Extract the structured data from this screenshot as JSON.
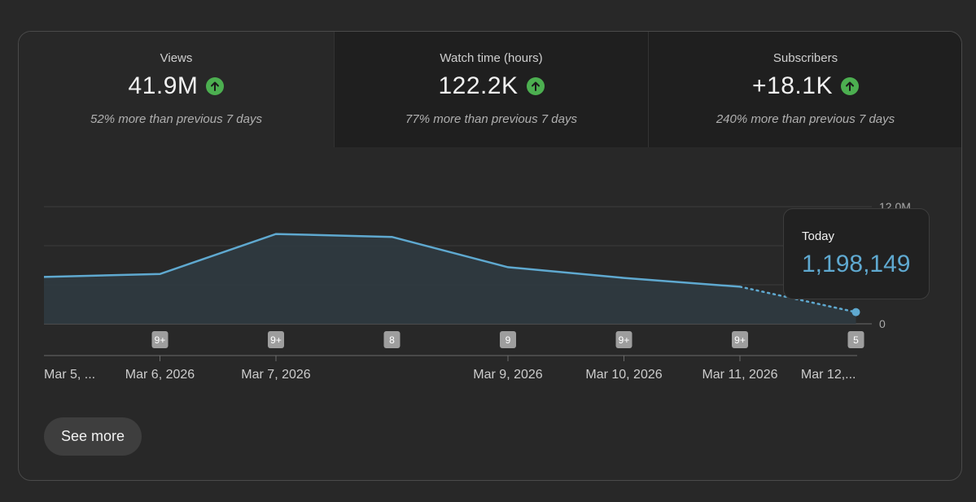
{
  "tabs": [
    {
      "label": "Views",
      "value": "41.9M",
      "change": "52% more than previous 7 days"
    },
    {
      "label": "Watch time (hours)",
      "value": "122.2K",
      "change": "77% more than previous 7 days"
    },
    {
      "label": "Subscribers",
      "value": "+18.1K",
      "change": "240% more than previous 7 days"
    }
  ],
  "colors": {
    "accent": "#5fa9d0",
    "up": "#4caf50",
    "fill": "#2f3a40"
  },
  "chart_data": {
    "type": "area",
    "title": "Views",
    "ylim": [
      0,
      12000000
    ],
    "y_tick_labels": [
      "12.0M",
      "0"
    ],
    "points": [
      {
        "x": 0,
        "y": 4800000
      },
      {
        "x": 1,
        "y": 5100000
      },
      {
        "x": 2,
        "y": 9200000
      },
      {
        "x": 3,
        "y": 8900000
      },
      {
        "x": 4,
        "y": 5800000
      },
      {
        "x": 5,
        "y": 4700000
      },
      {
        "x": 6,
        "y": 3800000
      },
      {
        "x": 7,
        "y": 1198149
      }
    ],
    "partial_from_index": 6,
    "x_labels": [
      {
        "x": 0,
        "label": "Mar 5, ..."
      },
      {
        "x": 1,
        "label": "Mar 6, 2026"
      },
      {
        "x": 2,
        "label": "Mar 7, 2026"
      },
      {
        "x": 4,
        "label": "Mar 9, 2026"
      },
      {
        "x": 5,
        "label": "Mar 10, 2026"
      },
      {
        "x": 6,
        "label": "Mar 11, 2026"
      },
      {
        "x": 7,
        "label": "Mar 12,..."
      }
    ],
    "upload_markers": [
      {
        "x": 1,
        "label": "9+"
      },
      {
        "x": 2,
        "label": "9+"
      },
      {
        "x": 3,
        "label": "8"
      },
      {
        "x": 4,
        "label": "9"
      },
      {
        "x": 5,
        "label": "9+"
      },
      {
        "x": 6,
        "label": "9+"
      },
      {
        "x": 7,
        "label": "5"
      }
    ]
  },
  "tooltip": {
    "label": "Today",
    "value": "1,198,149"
  },
  "see_more_label": "See more"
}
